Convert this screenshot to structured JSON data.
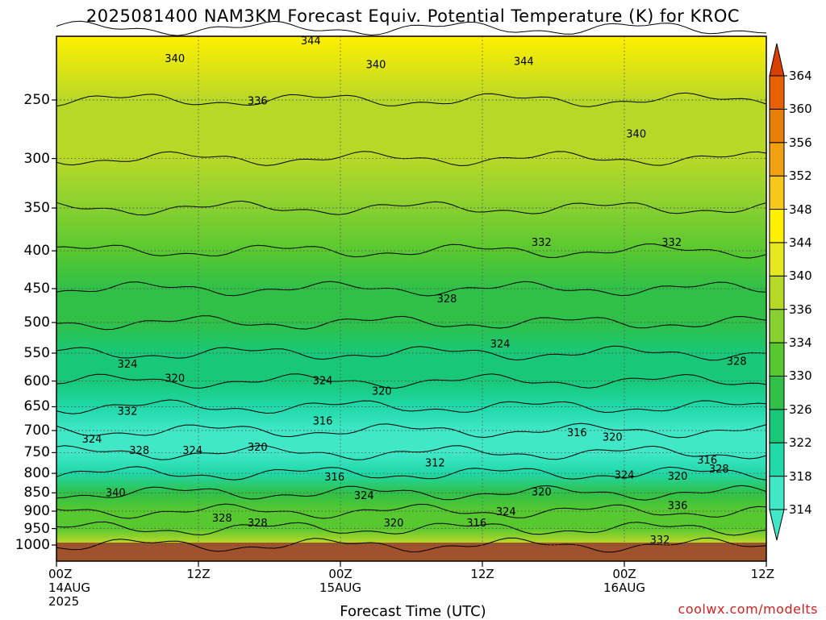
{
  "title": "2025081400 NAM3KM Forecast Equiv. Potential Temperature (K) for KROC",
  "xlabel": "Forecast Time (UTC)",
  "credit": "coolwx.com/modelts",
  "chart_data": {
    "type": "heatmap",
    "title": "2025081400 NAM3KM Forecast Equiv. Potential Temperature (K) for KROC",
    "xlabel": "Forecast Time (UTC)",
    "ylabel": "",
    "x_range_hours": [
      0,
      60
    ],
    "y_range_hpa": [
      1000,
      200
    ],
    "y_scale": "log-pressure (inverted)",
    "grid": true,
    "x_ticks": [
      {
        "hour": 0,
        "lines": [
          "00Z",
          "14AUG",
          "2025"
        ]
      },
      {
        "hour": 12,
        "lines": [
          "12Z"
        ]
      },
      {
        "hour": 24,
        "lines": [
          "00Z",
          "15AUG"
        ]
      },
      {
        "hour": 36,
        "lines": [
          "12Z"
        ]
      },
      {
        "hour": 48,
        "lines": [
          "00Z",
          "16AUG"
        ]
      },
      {
        "hour": 60,
        "lines": [
          "12Z"
        ]
      }
    ],
    "y_ticks": [
      250,
      300,
      350,
      400,
      450,
      500,
      550,
      600,
      650,
      700,
      750,
      800,
      850,
      900,
      950,
      1000
    ],
    "colorbar": {
      "levels": [
        314,
        318,
        322,
        326,
        330,
        334,
        336,
        340,
        344,
        348,
        352,
        356,
        360,
        364
      ],
      "colors": [
        "#40e8c8",
        "#20d8a8",
        "#18c878",
        "#30c048",
        "#58c830",
        "#88d030",
        "#b8d828",
        "#e8e820",
        "#fff000",
        "#f8c818",
        "#f0a010",
        "#e88008",
        "#e86000",
        "#d84000"
      ]
    },
    "theta_e_profile": [
      {
        "p": 1000,
        "value": 336
      },
      {
        "p": 950,
        "value": 332
      },
      {
        "p": 900,
        "value": 330
      },
      {
        "p": 850,
        "value": 326
      },
      {
        "p": 800,
        "value": 318
      },
      {
        "p": 750,
        "value": 314
      },
      {
        "p": 700,
        "value": 316
      },
      {
        "p": 650,
        "value": 320
      },
      {
        "p": 600,
        "value": 322
      },
      {
        "p": 550,
        "value": 324
      },
      {
        "p": 500,
        "value": 326
      },
      {
        "p": 450,
        "value": 328
      },
      {
        "p": 400,
        "value": 330
      },
      {
        "p": 350,
        "value": 334
      },
      {
        "p": 300,
        "value": 336
      },
      {
        "p": 250,
        "value": 338
      },
      {
        "p": 200,
        "value": 346
      }
    ],
    "contour_labels": [
      {
        "text": "344",
        "hour": 21.5,
        "p": 208
      },
      {
        "text": "340",
        "hour": 10.0,
        "p": 220
      },
      {
        "text": "344",
        "hour": 39.5,
        "p": 222
      },
      {
        "text": "340",
        "hour": 27.0,
        "p": 224
      },
      {
        "text": "336",
        "hour": 17.0,
        "p": 251
      },
      {
        "text": "340",
        "hour": 49.0,
        "p": 278
      },
      {
        "text": "332",
        "hour": 41.0,
        "p": 390
      },
      {
        "text": "332",
        "hour": 52.0,
        "p": 390
      },
      {
        "text": "328",
        "hour": 33.0,
        "p": 465
      },
      {
        "text": "324",
        "hour": 37.5,
        "p": 535
      },
      {
        "text": "324",
        "hour": 6.0,
        "p": 570
      },
      {
        "text": "328",
        "hour": 57.5,
        "p": 565
      },
      {
        "text": "320",
        "hour": 10.0,
        "p": 595
      },
      {
        "text": "324",
        "hour": 22.5,
        "p": 600
      },
      {
        "text": "320",
        "hour": 27.5,
        "p": 620
      },
      {
        "text": "332",
        "hour": 6.0,
        "p": 660
      },
      {
        "text": "316",
        "hour": 22.5,
        "p": 680
      },
      {
        "text": "316",
        "hour": 44.0,
        "p": 705
      },
      {
        "text": "320",
        "hour": 47.0,
        "p": 715
      },
      {
        "text": "324",
        "hour": 3.0,
        "p": 720
      },
      {
        "text": "320",
        "hour": 17.0,
        "p": 738
      },
      {
        "text": "324",
        "hour": 11.5,
        "p": 745
      },
      {
        "text": "328",
        "hour": 7.0,
        "p": 745
      },
      {
        "text": "312",
        "hour": 32.0,
        "p": 775
      },
      {
        "text": "316",
        "hour": 55.0,
        "p": 768
      },
      {
        "text": "328",
        "hour": 56.0,
        "p": 790
      },
      {
        "text": "324",
        "hour": 48.0,
        "p": 805
      },
      {
        "text": "320",
        "hour": 52.5,
        "p": 808
      },
      {
        "text": "316",
        "hour": 23.5,
        "p": 810
      },
      {
        "text": "340",
        "hour": 5.0,
        "p": 850
      },
      {
        "text": "324",
        "hour": 26.0,
        "p": 858
      },
      {
        "text": "320",
        "hour": 41.0,
        "p": 848
      },
      {
        "text": "336",
        "hour": 52.5,
        "p": 885
      },
      {
        "text": "328",
        "hour": 14.0,
        "p": 920
      },
      {
        "text": "324",
        "hour": 38.0,
        "p": 902
      },
      {
        "text": "328",
        "hour": 17.0,
        "p": 935
      },
      {
        "text": "320",
        "hour": 28.5,
        "p": 935
      },
      {
        "text": "316",
        "hour": 35.5,
        "p": 935
      },
      {
        "text": "332",
        "hour": 51.0,
        "p": 985
      }
    ]
  }
}
